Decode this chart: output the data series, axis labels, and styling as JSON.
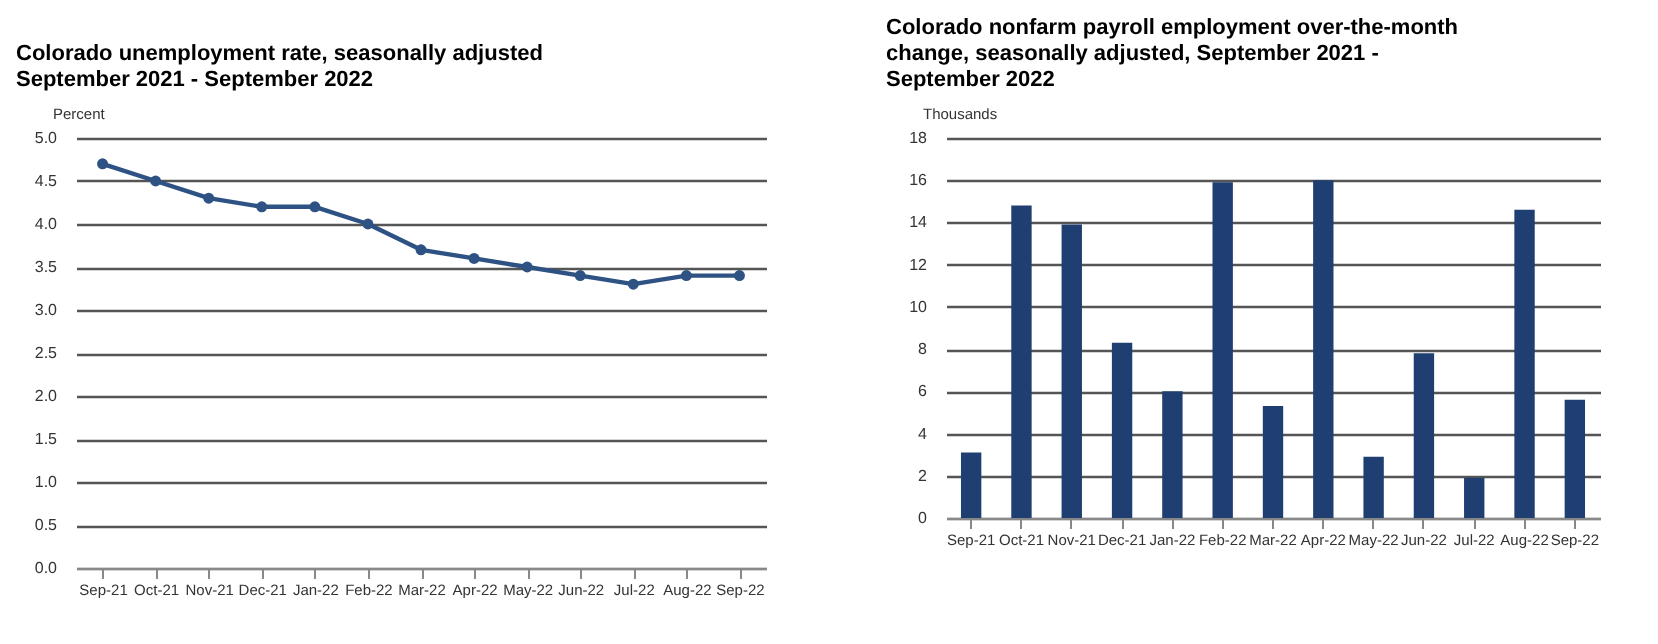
{
  "chart_data": [
    {
      "type": "line",
      "title": [
        "Colorado unemployment rate, seasonally adjusted",
        "September 2021 - September 2022"
      ],
      "ylabel": "Percent",
      "categories": [
        "Sep-21",
        "Oct-21",
        "Nov-21",
        "Dec-21",
        "Jan-22",
        "Feb-22",
        "Mar-22",
        "Apr-22",
        "May-22",
        "Jun-22",
        "Jul-22",
        "Aug-22",
        "Sep-22"
      ],
      "series": [
        {
          "color": "#2d5283",
          "values": [
            4.7,
            4.5,
            4.3,
            4.2,
            4.2,
            4.0,
            3.7,
            3.6,
            3.5,
            3.4,
            3.3,
            3.4,
            3.4
          ]
        }
      ],
      "ylim": [
        0,
        5
      ],
      "yticks": [
        {
          "value": 0,
          "label": "0.0"
        },
        {
          "value": 0.5,
          "label": "0.5"
        },
        {
          "value": 1,
          "label": "1.0"
        },
        {
          "value": 1.5,
          "label": "1.5"
        },
        {
          "value": 2,
          "label": "2.0"
        },
        {
          "value": 2.5,
          "label": "2.5"
        },
        {
          "value": 3,
          "label": "3.0"
        },
        {
          "value": 3.5,
          "label": "3.5"
        },
        {
          "value": 4,
          "label": "4.0"
        },
        {
          "value": 4.5,
          "label": "4.5"
        },
        {
          "value": 5,
          "label": "5.0"
        }
      ],
      "grid": "y",
      "marker": "circle",
      "line_style": "solid",
      "legend": false
    },
    {
      "type": "bar",
      "title": [
        "Colorado nonfarm payroll employment over-the-month",
        "change, seasonally adjusted, September 2021 -",
        "September 2022"
      ],
      "ylabel": "Thousands",
      "categories": [
        "Sep-21",
        "Oct-21",
        "Nov-21",
        "Dec-21",
        "Jan-22",
        "Feb-22",
        "Mar-22",
        "Apr-22",
        "May-22",
        "Jun-22",
        "Jul-22",
        "Aug-22",
        "Sep-22"
      ],
      "series": [
        {
          "color": "#1f3f73",
          "values": [
            3.1,
            14.8,
            13.9,
            8.3,
            6.0,
            15.9,
            5.3,
            16.0,
            2.9,
            7.8,
            1.9,
            14.6,
            5.6
          ]
        }
      ],
      "ylim": [
        0,
        18
      ],
      "yticks": [
        0,
        2,
        4,
        6,
        8,
        10,
        12,
        14,
        16,
        18
      ],
      "grid": "y",
      "legend": false
    }
  ]
}
